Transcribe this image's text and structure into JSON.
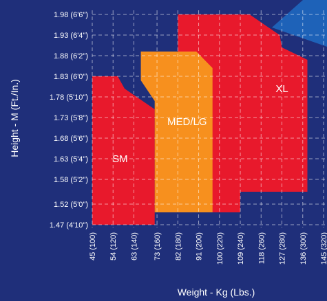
{
  "chart_data": {
    "type": "area",
    "xlabel": "Weight - Kg (Lbs.)",
    "ylabel": "Height - M (Ft./In.)",
    "x_unit": "kg",
    "y_unit": "m",
    "x_ticks": [
      {
        "value": 45,
        "label": "45 (100)"
      },
      {
        "value": 54,
        "label": "54 (120)"
      },
      {
        "value": 63,
        "label": "63 (140)"
      },
      {
        "value": 73,
        "label": "73 (160)"
      },
      {
        "value": 82,
        "label": "82 (180)"
      },
      {
        "value": 91,
        "label": "91 (200)"
      },
      {
        "value": 100,
        "label": "100 (220)"
      },
      {
        "value": 109,
        "label": "109 (240)"
      },
      {
        "value": 118,
        "label": "118 (260)"
      },
      {
        "value": 127,
        "label": "127 (280)"
      },
      {
        "value": 136,
        "label": "136 (300)"
      },
      {
        "value": 145,
        "label": "145 (320)"
      }
    ],
    "y_ticks": [
      {
        "value": 1.98,
        "label": "1.98 (6'6\")"
      },
      {
        "value": 1.93,
        "label": "1.93 (6'4\")"
      },
      {
        "value": 1.88,
        "label": "1.88 (6'2\")"
      },
      {
        "value": 1.83,
        "label": "1.83 (6'0\")"
      },
      {
        "value": 1.78,
        "label": "1.78 (5'10\")"
      },
      {
        "value": 1.73,
        "label": "1.73 (5'8\")"
      },
      {
        "value": 1.68,
        "label": "1.68 (5'6\")"
      },
      {
        "value": 1.63,
        "label": "1.63 (5'4\")"
      },
      {
        "value": 1.58,
        "label": "1.58 (5'2\")"
      },
      {
        "value": 1.52,
        "label": "1.52 (5'0\")"
      },
      {
        "value": 1.47,
        "label": "1.47 (4'10\")"
      }
    ],
    "grid": true,
    "regions": [
      {
        "name": "XL",
        "color": "#e8192c",
        "polygon": [
          [
            100,
            1.98
          ],
          [
            113,
            1.98
          ],
          [
            126,
            1.93
          ],
          [
            127,
            1.9
          ],
          [
            138,
            1.87
          ],
          [
            138,
            1.55
          ],
          [
            109,
            1.55
          ],
          [
            109,
            1.5
          ],
          [
            82,
            1.5
          ],
          [
            82,
            1.98
          ]
        ],
        "label_at": [
          127,
          1.8
        ]
      },
      {
        "name": "SM",
        "color": "#e8192c",
        "polygon": [
          [
            45,
            1.83
          ],
          [
            56,
            1.83
          ],
          [
            59,
            1.8
          ],
          [
            72,
            1.75
          ],
          [
            72,
            1.47
          ],
          [
            45,
            1.47
          ]
        ],
        "label_at": [
          57,
          1.63
        ]
      },
      {
        "name": "MED/LG",
        "color": "#f7901e",
        "polygon": [
          [
            66,
            1.89
          ],
          [
            90,
            1.89
          ],
          [
            97,
            1.85
          ],
          [
            97,
            1.5
          ],
          [
            72,
            1.5
          ],
          [
            72,
            1.77
          ],
          [
            66,
            1.82
          ]
        ],
        "label_at": [
          86,
          1.72
        ]
      }
    ],
    "decoration": {
      "corner_color": "#1e62b8"
    }
  }
}
